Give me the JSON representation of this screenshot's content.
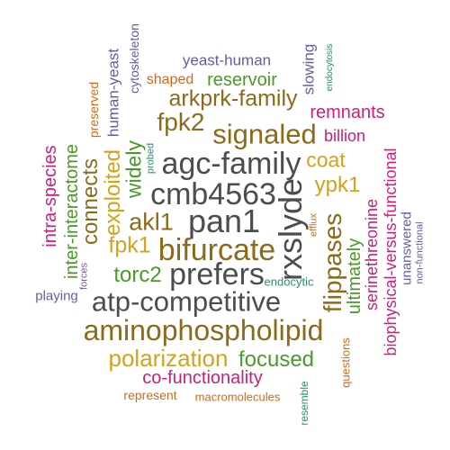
{
  "colors": {
    "gray": "#4d4d4d",
    "brown": "#8c6a1a",
    "gold": "#d4a21b",
    "magenta": "#cc1f7a",
    "green": "#4a9a28",
    "orange": "#cf6a1c",
    "purple": "#6a5aa3",
    "teal": "#2a8f6b"
  },
  "words": [
    {
      "text": "yeast-human"
    },
    {
      "text": "slowing"
    },
    {
      "text": "endocytosis"
    },
    {
      "text": "shaped"
    },
    {
      "text": "reservoir"
    },
    {
      "text": "human-yeast"
    },
    {
      "text": "cytoskeleton"
    },
    {
      "text": "preserved"
    },
    {
      "text": "arkprk-family"
    },
    {
      "text": "remnants"
    },
    {
      "text": "fpk2"
    },
    {
      "text": "signaled"
    },
    {
      "text": "billion"
    },
    {
      "text": "intra-species"
    },
    {
      "text": "inter-interactome"
    },
    {
      "text": "connects"
    },
    {
      "text": "exploited"
    },
    {
      "text": "widely"
    },
    {
      "text": "probed"
    },
    {
      "text": "agc-family"
    },
    {
      "text": "coat"
    },
    {
      "text": "biophysical-versus-functional"
    },
    {
      "text": "cmb4563"
    },
    {
      "text": "rxslyde"
    },
    {
      "text": "ypk1"
    },
    {
      "text": "serinethreonine"
    },
    {
      "text": "akl1"
    },
    {
      "text": "pan1"
    },
    {
      "text": "efflux"
    },
    {
      "text": "flippases"
    },
    {
      "text": "unanswered"
    },
    {
      "text": "non-functional"
    },
    {
      "text": "fpk1"
    },
    {
      "text": "bifurcate"
    },
    {
      "text": "forces"
    },
    {
      "text": "torc2"
    },
    {
      "text": "prefers"
    },
    {
      "text": "endocytic"
    },
    {
      "text": "ultimately"
    },
    {
      "text": "playing"
    },
    {
      "text": "atp-competitive"
    },
    {
      "text": "aminophospholipid"
    },
    {
      "text": "questions"
    },
    {
      "text": "polarization"
    },
    {
      "text": "focused"
    },
    {
      "text": "co-functionality"
    },
    {
      "text": "represent"
    },
    {
      "text": "macromolecules"
    },
    {
      "text": "resemble"
    }
  ]
}
